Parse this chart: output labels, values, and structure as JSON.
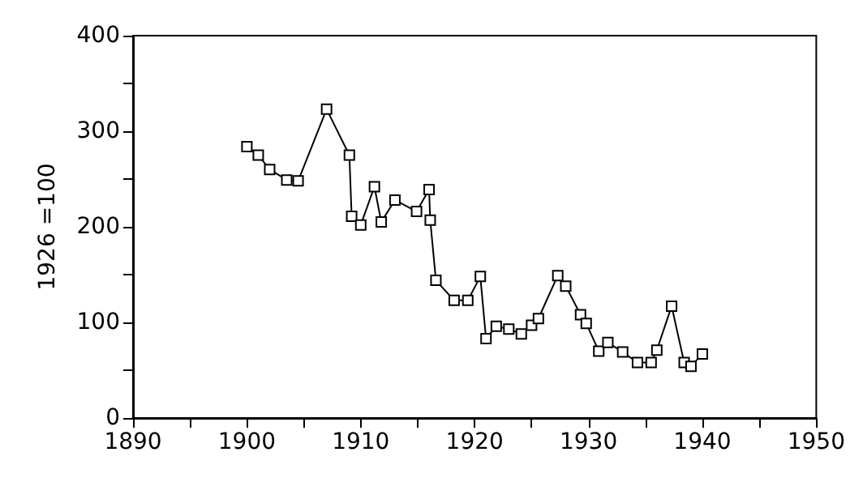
{
  "chart_data": {
    "type": "line",
    "ylabel": "1926 =100",
    "marker": "square",
    "grid": false,
    "xlim": [
      1890,
      1950
    ],
    "xticks": [
      1890,
      {
        "value": 1895,
        "label": null
      },
      1900,
      {
        "value": 1905,
        "label": null
      },
      1910,
      {
        "value": 1915,
        "label": null
      },
      1920,
      {
        "value": 1925,
        "label": null
      },
      1930,
      {
        "value": 1935,
        "label": null
      },
      1940,
      {
        "value": 1945,
        "label": null
      },
      1950
    ],
    "ylim": [
      0,
      400
    ],
    "yticks": [
      0,
      {
        "value": 50,
        "label": null
      },
      100,
      {
        "value": 150,
        "label": null
      },
      200,
      {
        "value": 250,
        "label": null
      },
      300,
      {
        "value": 350,
        "label": null
      },
      400
    ],
    "series": [
      {
        "color": "#000000",
        "x": [
          1900,
          1901,
          1902,
          1903.5,
          1904.5,
          1907,
          1909,
          1909.2,
          1910,
          1911.2,
          1911.8,
          1913,
          1914.9,
          1916,
          1916.1,
          1916.6,
          1918.2,
          1919.4,
          1920.5,
          1921,
          1921.9,
          1923,
          1924.1,
          1925,
          1925.6,
          1927.3,
          1928,
          1929.3,
          1929.8,
          1930.9,
          1931.7,
          1933,
          1934.3,
          1935.5,
          1936,
          1937.3,
          1938.4,
          1939,
          1940
        ],
        "values": [
          284,
          275,
          260,
          249,
          248,
          323,
          275,
          211,
          202,
          242,
          205,
          228,
          216,
          239,
          207,
          144,
          123,
          123,
          148,
          83,
          96,
          93,
          88,
          97,
          104,
          149,
          138,
          108,
          99,
          70,
          79,
          69,
          58,
          58,
          71,
          117,
          58,
          54,
          67
        ]
      }
    ]
  }
}
